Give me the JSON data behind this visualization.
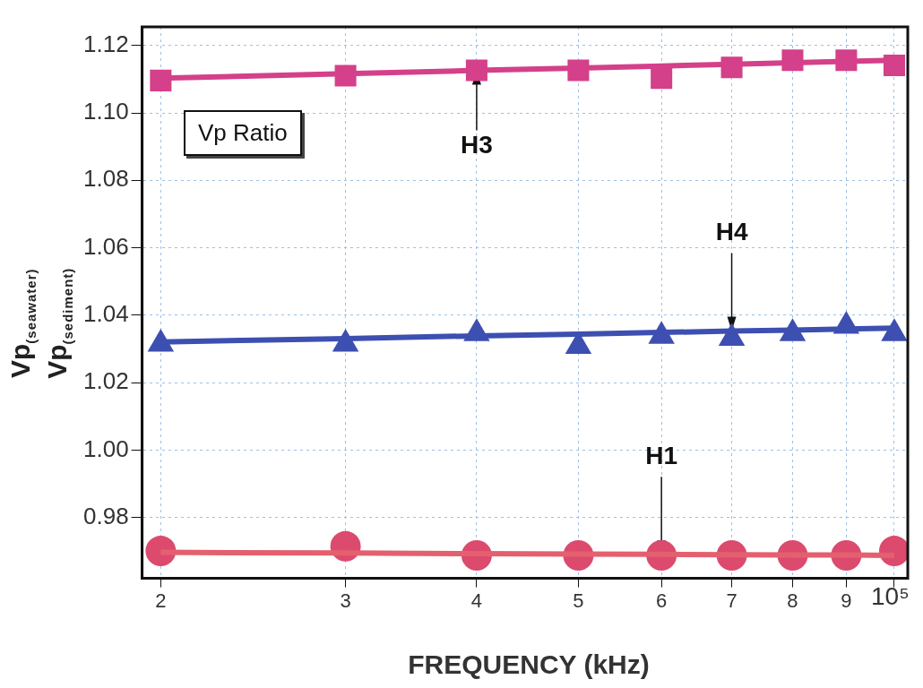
{
  "chart_data": {
    "type": "scatter",
    "xlabel": "FREQUENCY (kHz)",
    "ylabel": "Vp$_{(seawater)}$\nVp$_{(sediment)}$",
    "log": "x",
    "grid": true,
    "legend": false,
    "xlim": [
      1.92,
      10.3
    ],
    "ylim": [
      0.962,
      1.1255
    ],
    "xticks": [
      2,
      3,
      4,
      5,
      6,
      7,
      8,
      9,
      {
        "value": 10,
        "label": null
      }
    ],
    "yticks": [
      0.98,
      {
        "value": 1,
        "label": "1.00"
      },
      1.02,
      1.04,
      1.06,
      1.08,
      {
        "value": 1.1,
        "label": "1.10"
      },
      1.12
    ],
    "x": [
      2,
      3,
      4,
      5,
      6,
      7,
      8,
      9,
      10
    ],
    "series": [
      {
        "type": "scatter",
        "marker": "square",
        "color": "#d4408a",
        "values": [
          1.1096,
          1.111,
          1.1126,
          1.1126,
          1.1103,
          1.1135,
          1.1156,
          1.1156,
          1.1141
        ]
      },
      {
        "type": "line",
        "marker": "none",
        "color": "#d4408a",
        "values": [
          1.1103,
          1.1116,
          1.1126,
          1.1133,
          1.1139,
          1.1144,
          1.1149,
          1.1153,
          1.1156
        ]
      },
      {
        "type": "scatter",
        "marker": "triangle",
        "color": "#3d4fb0",
        "values": [
          1.0315,
          1.0315,
          1.0346,
          1.0308,
          1.0338,
          1.0332,
          1.0346,
          1.0368,
          1.0346
        ]
      },
      {
        "type": "line",
        "marker": "none",
        "color": "#3d4fb0",
        "values": [
          1.0321,
          1.0331,
          1.0339,
          1.0344,
          1.0349,
          1.0353,
          1.0356,
          1.0359,
          1.0362
        ]
      },
      {
        "type": "scatter",
        "marker": "circle",
        "color": "#dc4a6e",
        "values": [
          0.9701,
          0.9715,
          0.9688,
          0.9688,
          0.9688,
          0.9688,
          0.9688,
          0.9688,
          0.9701
        ]
      },
      {
        "type": "line",
        "marker": "none",
        "color": "#e4606e",
        "values": [
          0.9697,
          0.9695,
          0.9693,
          0.9692,
          0.9691,
          0.969,
          0.9689,
          0.9689,
          0.9688
        ]
      }
    ],
    "annotations": [
      "Vp Ratio",
      "10⁵",
      {
        "text": "H3",
        "x": 4,
        "y": 1.1126
      },
      {
        "text": "H4",
        "x": 7,
        "y": 1.0353
      },
      {
        "text": "H1",
        "x": 6,
        "y": 0.969
      }
    ]
  }
}
